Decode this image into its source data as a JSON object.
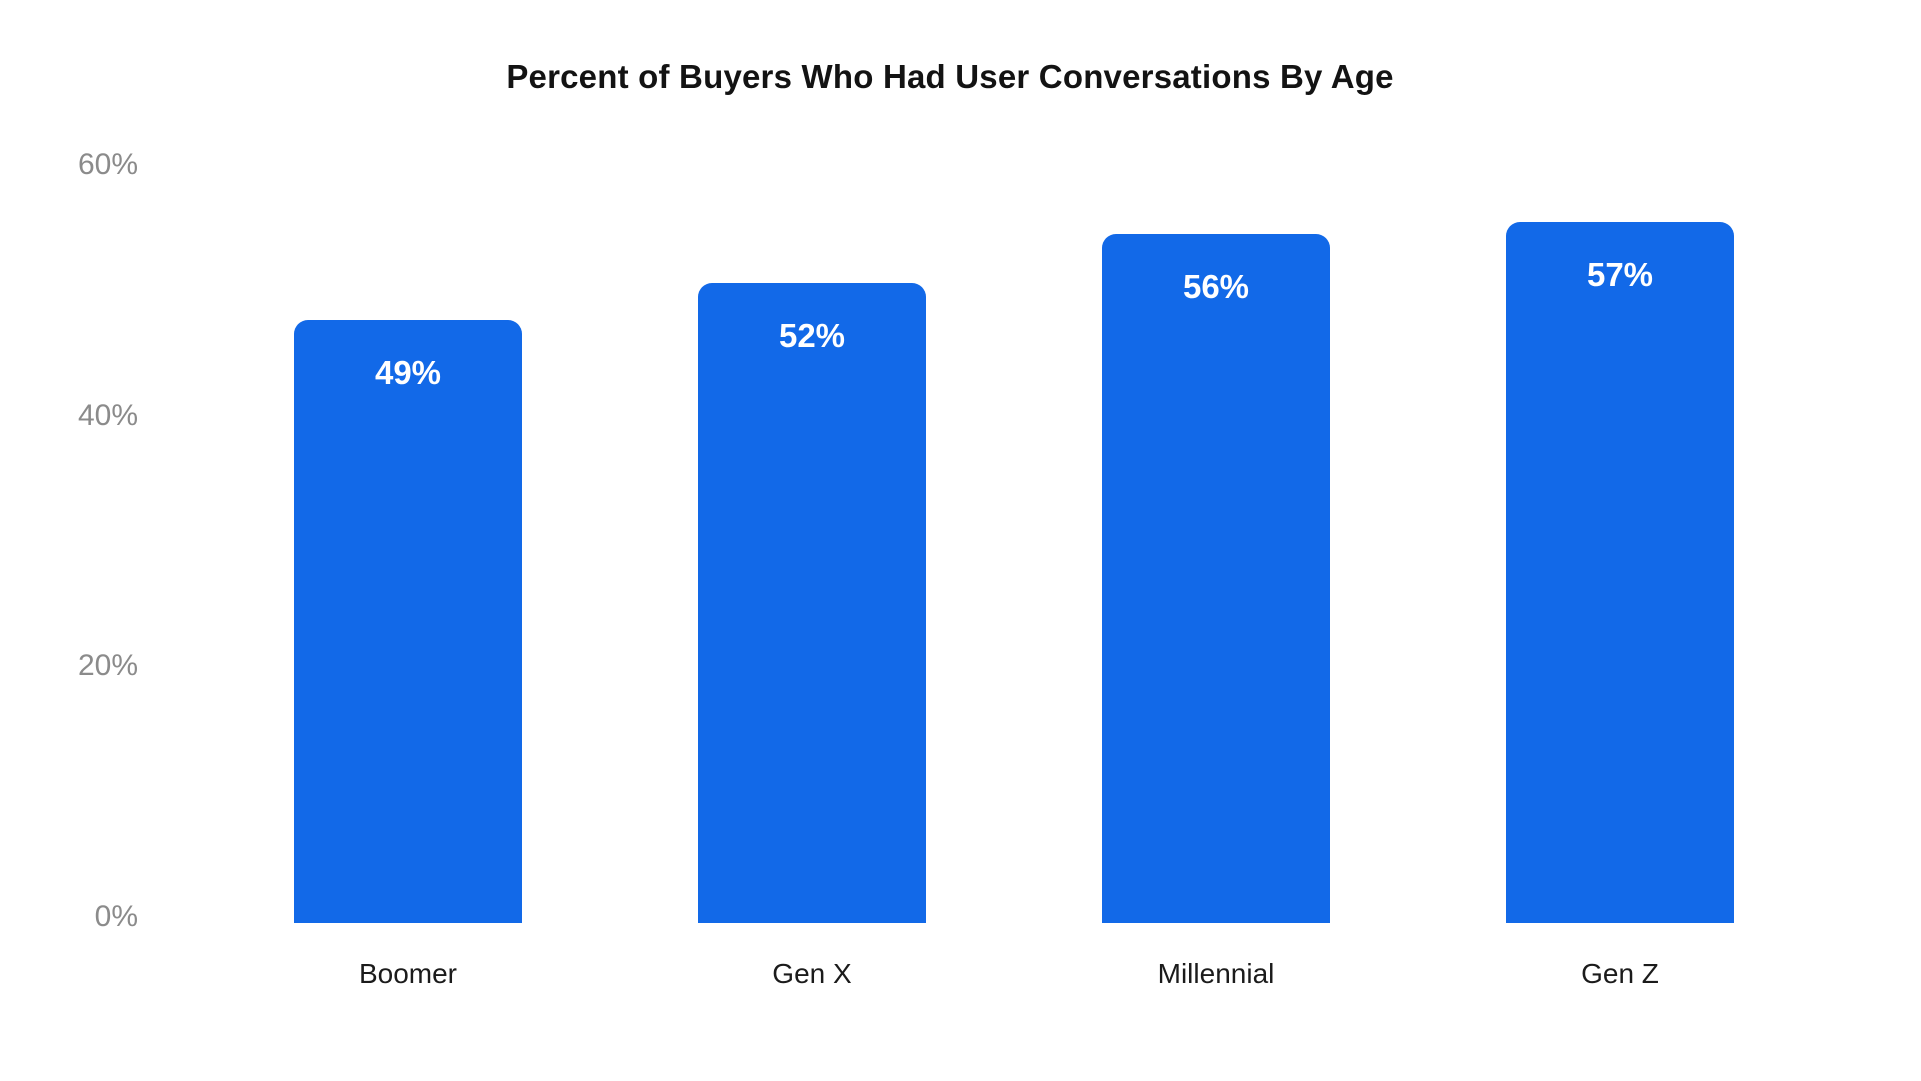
{
  "chart_data": {
    "type": "bar",
    "title": "Percent of Buyers Who Had User Conversations By Age",
    "categories": [
      "Boomer",
      "Gen X",
      "Millennial",
      "Gen Z"
    ],
    "values": [
      49,
      52,
      56,
      57
    ],
    "value_labels": [
      "49%",
      "52%",
      "56%",
      "57%"
    ],
    "xlabel": "",
    "ylabel": "",
    "ylim": [
      0,
      60
    ],
    "yticks": [
      {
        "label": "0%",
        "value": 0
      },
      {
        "label": "20%",
        "value": 20
      },
      {
        "label": "40%",
        "value": 40
      },
      {
        "label": "60%",
        "value": 60
      }
    ],
    "grid": false,
    "legend": false,
    "colors": {
      "bar": "#1269e8",
      "value_label": "#ffffff",
      "title": "#131313",
      "ytick": "#8b8b8b",
      "xtick": "#1b1b1b",
      "background": "#ffffff"
    }
  }
}
